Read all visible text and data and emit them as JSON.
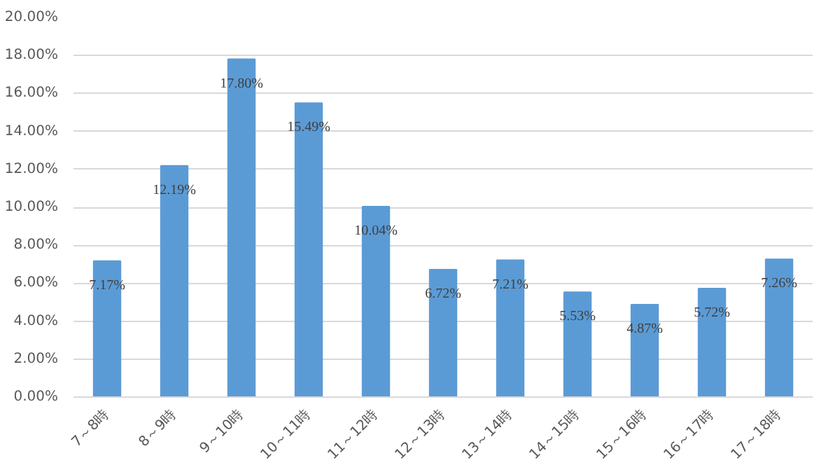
{
  "chart_data": {
    "type": "bar",
    "categories": [
      "7～8時",
      "8～9時",
      "9～10時",
      "10～11時",
      "11～12時",
      "12～13時",
      "13～14時",
      "14～15時",
      "15～16時",
      "16～17時",
      "17～18時"
    ],
    "values": [
      7.17,
      12.19,
      17.8,
      15.49,
      10.04,
      6.72,
      7.21,
      5.53,
      4.87,
      5.72,
      7.26
    ],
    "value_labels": [
      "7.17%",
      "12.19%",
      "17.80%",
      "15.49%",
      "10.04%",
      "6.72%",
      "7.21%",
      "5.53%",
      "4.87%",
      "5.72%",
      "7.26%"
    ],
    "color": "#5b9bd5",
    "ylim": [
      0,
      20
    ],
    "yticks": [
      {
        "value": 0,
        "label": "0.00%"
      },
      {
        "value": 2,
        "label": "2.00%"
      },
      {
        "value": 4,
        "label": "4.00%"
      },
      {
        "value": 6,
        "label": "6.00%"
      },
      {
        "value": 8,
        "label": "8.00%"
      },
      {
        "value": 10,
        "label": "10.00%"
      },
      {
        "value": 12,
        "label": "12.00%"
      },
      {
        "value": 14,
        "label": "14.00%"
      },
      {
        "value": 16,
        "label": "16.00%"
      },
      {
        "value": 18,
        "label": "18.00%"
      },
      {
        "value": 20,
        "label": "20.00%"
      }
    ],
    "grid": "y"
  }
}
